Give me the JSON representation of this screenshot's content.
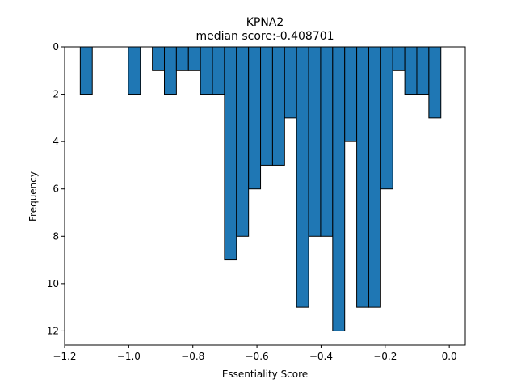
{
  "chart_data": {
    "type": "bar",
    "title": "KPNA2",
    "subtitle": "median score:-0.408701",
    "xlabel": "Essentiality Score",
    "ylabel": "Frequency",
    "xlim": [
      -1.2,
      0.05
    ],
    "ylim": [
      12.6,
      0
    ],
    "y_inverted": true,
    "bar_color": "#1f77b4",
    "edge_color": "#000000",
    "bin_width": 0.0375,
    "bins": [
      {
        "x": -1.1325,
        "count": 2
      },
      {
        "x": -0.9825,
        "count": 2
      },
      {
        "x": -0.9075,
        "count": 1
      },
      {
        "x": -0.87,
        "count": 2
      },
      {
        "x": -0.8325,
        "count": 1
      },
      {
        "x": -0.795,
        "count": 1
      },
      {
        "x": -0.7575,
        "count": 2
      },
      {
        "x": -0.72,
        "count": 2
      },
      {
        "x": -0.6825,
        "count": 9
      },
      {
        "x": -0.645,
        "count": 8
      },
      {
        "x": -0.6075,
        "count": 6
      },
      {
        "x": -0.57,
        "count": 5
      },
      {
        "x": -0.5325,
        "count": 5
      },
      {
        "x": -0.495,
        "count": 3
      },
      {
        "x": -0.4575,
        "count": 11
      },
      {
        "x": -0.42,
        "count": 8
      },
      {
        "x": -0.3825,
        "count": 8
      },
      {
        "x": -0.345,
        "count": 12
      },
      {
        "x": -0.3075,
        "count": 4
      },
      {
        "x": -0.27,
        "count": 11
      },
      {
        "x": -0.2325,
        "count": 11
      },
      {
        "x": -0.195,
        "count": 6
      },
      {
        "x": -0.1575,
        "count": 1
      },
      {
        "x": -0.12,
        "count": 2
      },
      {
        "x": -0.0825,
        "count": 2
      },
      {
        "x": -0.045,
        "count": 3
      }
    ],
    "x_ticks": [
      -1.2,
      -1.0,
      -0.8,
      -0.6,
      -0.4,
      -0.2,
      0.0
    ],
    "x_tick_labels": [
      "−1.2",
      "−1.0",
      "−0.8",
      "−0.6",
      "−0.4",
      "−0.2",
      "0.0"
    ],
    "y_ticks": [
      0,
      2,
      4,
      6,
      8,
      10,
      12
    ],
    "y_tick_labels": [
      "0",
      "2",
      "4",
      "6",
      "8",
      "10",
      "12"
    ],
    "grid": false
  }
}
